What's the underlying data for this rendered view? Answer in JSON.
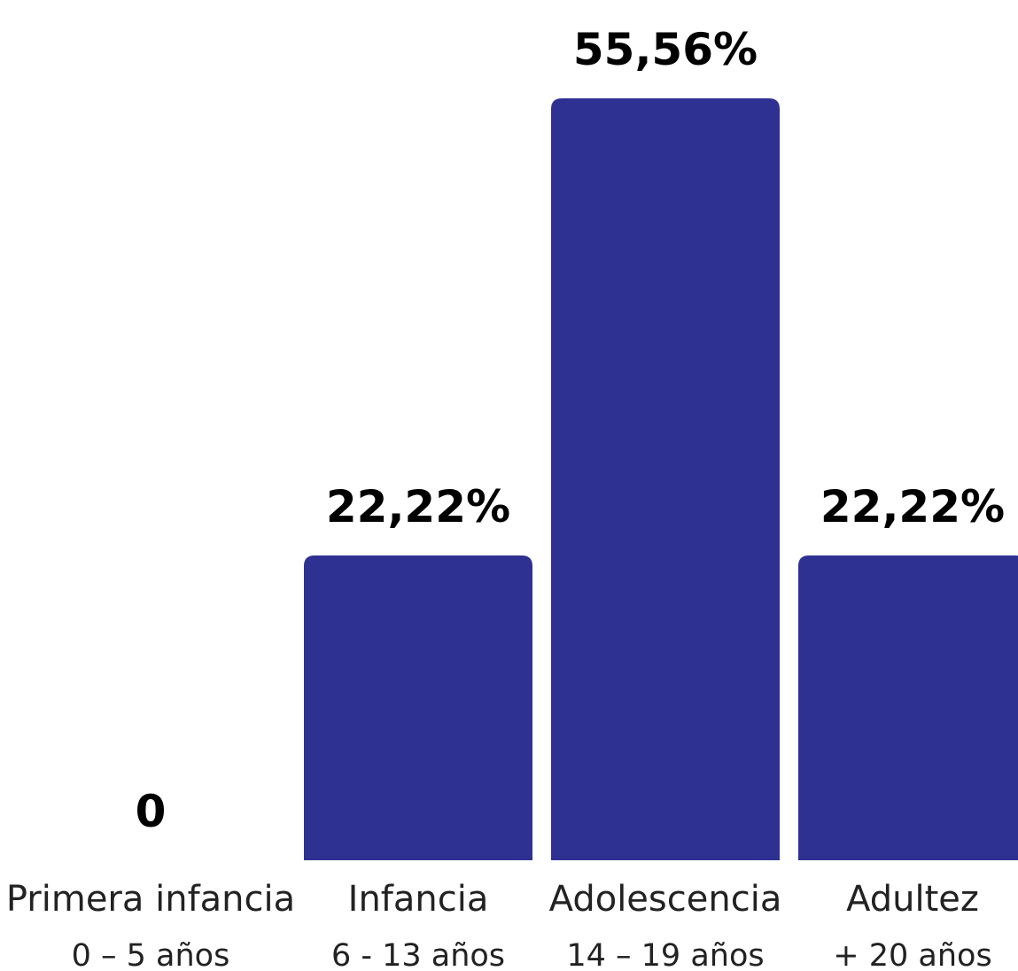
{
  "chart_data": {
    "type": "bar",
    "categories": [
      {
        "label": "Primera infancia",
        "range": "0 – 5 años"
      },
      {
        "label": "Infancia",
        "range": "6 - 13 años"
      },
      {
        "label": "Adolescencia",
        "range": "14 – 19 años"
      },
      {
        "label": "Adultez",
        "range": "+ 20 años"
      }
    ],
    "values": [
      0,
      22.22,
      55.56,
      22.22
    ],
    "value_labels": [
      "0",
      "22,22%",
      "55,56%",
      "22,22%"
    ],
    "title": "",
    "xlabel": "",
    "ylabel": "",
    "ylim": [
      0,
      55.56
    ],
    "grid": false,
    "legend": "none",
    "bar_color": "#2e3192",
    "text_color": "#000000"
  }
}
